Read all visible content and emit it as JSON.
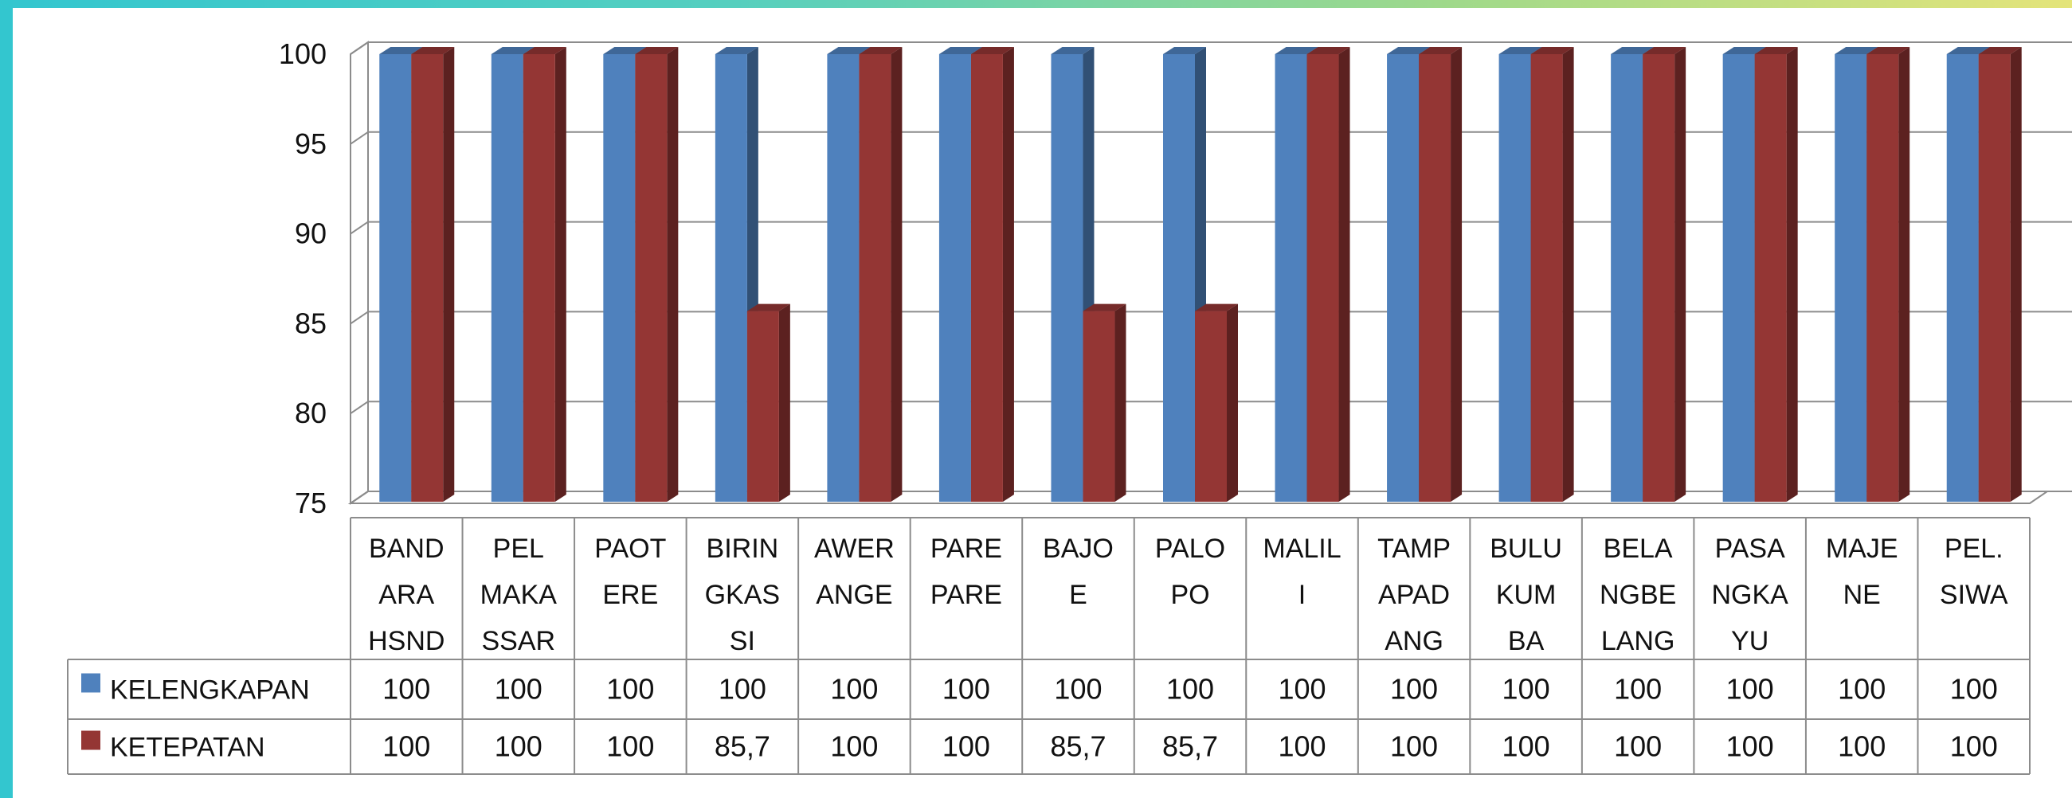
{
  "chart_data": {
    "type": "bar",
    "title": "",
    "xlabel": "",
    "ylabel": "",
    "ylim": [
      75,
      100
    ],
    "yticks": [
      75,
      80,
      85,
      90,
      95,
      100
    ],
    "grid": true,
    "legend_placement": "data-table-left",
    "categories": [
      [
        "BAND",
        "ARA",
        "HSND"
      ],
      [
        "PEL",
        "MAKA",
        "SSAR"
      ],
      [
        "PAOT",
        "ERE"
      ],
      [
        "BIRIN",
        "GKAS",
        "SI"
      ],
      [
        "AWER",
        "ANGE"
      ],
      [
        "PARE",
        "PARE"
      ],
      [
        "BAJO",
        "E"
      ],
      [
        "PALO",
        "PO"
      ],
      [
        "MALIL",
        "I"
      ],
      [
        "TAMP",
        "APAD",
        "ANG"
      ],
      [
        "BULU",
        "KUM",
        "BA"
      ],
      [
        "BELA",
        "NGBE",
        "LANG"
      ],
      [
        "PASA",
        "NGKA",
        "YU"
      ],
      [
        "MAJE",
        "NE"
      ],
      [
        "PEL.",
        "SIWA"
      ]
    ],
    "series": [
      {
        "name": "KELENGKAPAN",
        "color": "#4f81bd",
        "values": [
          100,
          100,
          100,
          100,
          100,
          100,
          100,
          100,
          100,
          100,
          100,
          100,
          100,
          100,
          100
        ],
        "labels": [
          "100",
          "100",
          "100",
          "100",
          "100",
          "100",
          "100",
          "100",
          "100",
          "100",
          "100",
          "100",
          "100",
          "100",
          "100"
        ]
      },
      {
        "name": "KETEPATAN",
        "color": "#943634",
        "values": [
          100,
          100,
          100,
          85.7,
          100,
          100,
          85.7,
          85.7,
          100,
          100,
          100,
          100,
          100,
          100,
          100
        ],
        "labels": [
          "100",
          "100",
          "100",
          "85,7",
          "100",
          "100",
          "85,7",
          "85,7",
          "100",
          "100",
          "100",
          "100",
          "100",
          "100",
          "100"
        ]
      }
    ]
  }
}
